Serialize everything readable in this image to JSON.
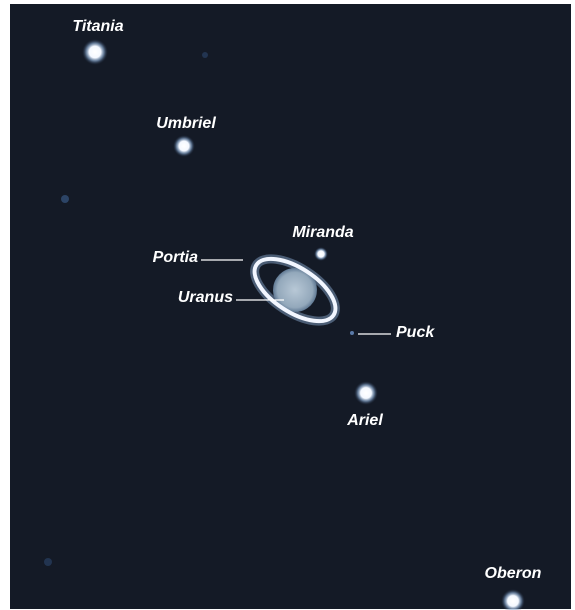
{
  "labels": [
    "Titania",
    "Umbriel",
    "Miranda",
    "Portia",
    "Uranus",
    "Puck",
    "Ariel",
    "Oberon"
  ]
}
